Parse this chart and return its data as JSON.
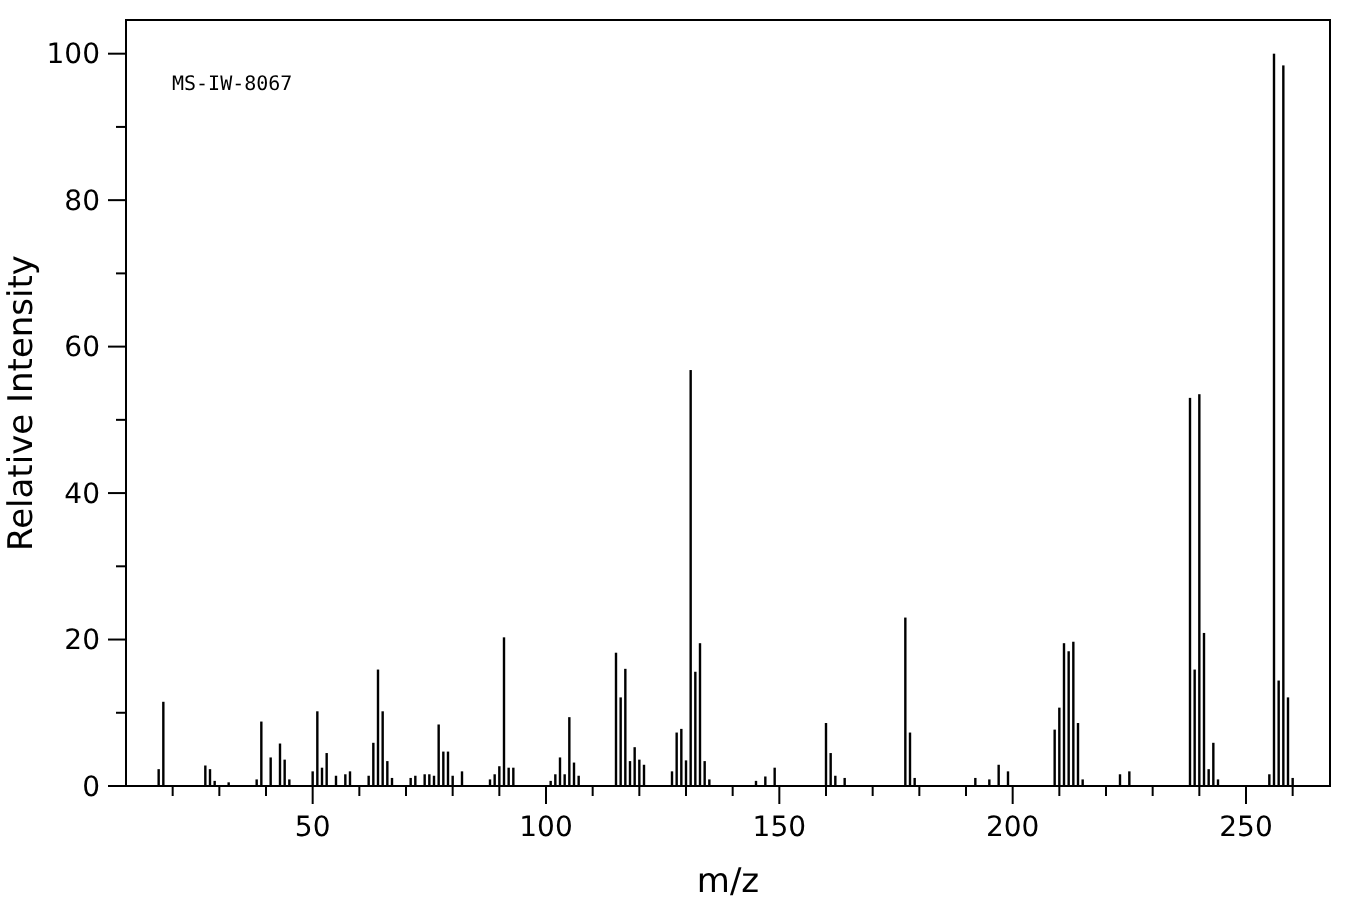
{
  "chart_data": {
    "type": "bar",
    "xlabel": "m/z",
    "ylabel": "Relative Intensity",
    "annotations": [
      "MS-IW-8067"
    ],
    "x": [
      17,
      18,
      27,
      28,
      29,
      32,
      38,
      39,
      41,
      43,
      44,
      45,
      50,
      51,
      52,
      53,
      55,
      57,
      58,
      62,
      63,
      64,
      65,
      66,
      67,
      71,
      72,
      74,
      75,
      76,
      77,
      78,
      79,
      80,
      82,
      88,
      89,
      90,
      91,
      92,
      93,
      101,
      102,
      103,
      104,
      105,
      106,
      107,
      115,
      116,
      117,
      118,
      119,
      120,
      121,
      127,
      128,
      129,
      130,
      131,
      132,
      133,
      134,
      135,
      145,
      147,
      149,
      160,
      161,
      162,
      164,
      177,
      178,
      179,
      192,
      195,
      197,
      199,
      209,
      210,
      211,
      212,
      213,
      214,
      215,
      223,
      225,
      238,
      239,
      240,
      241,
      242,
      243,
      244,
      255,
      256,
      257,
      258,
      259,
      260
    ],
    "values": [
      2.3,
      11.5,
      2.8,
      2.3,
      0.7,
      0.5,
      0.9,
      8.8,
      3.9,
      5.8,
      3.6,
      0.9,
      2.0,
      10.2,
      2.5,
      4.5,
      1.4,
      1.6,
      2.0,
      1.4,
      5.9,
      15.9,
      10.2,
      3.4,
      1.1,
      1.1,
      1.4,
      1.6,
      1.6,
      1.4,
      8.4,
      4.7,
      4.7,
      1.4,
      2.0,
      0.9,
      1.6,
      2.7,
      20.3,
      2.5,
      2.5,
      0.7,
      1.6,
      3.9,
      1.6,
      9.4,
      3.2,
      1.4,
      18.2,
      12.1,
      16.0,
      3.4,
      5.3,
      3.6,
      2.9,
      2.0,
      7.3,
      7.8,
      3.5,
      56.8,
      15.6,
      19.5,
      3.4,
      0.9,
      0.7,
      1.3,
      2.5,
      8.6,
      4.5,
      1.4,
      1.1,
      23.0,
      7.3,
      1.1,
      1.1,
      0.9,
      2.9,
      2.0,
      7.7,
      10.7,
      19.5,
      18.4,
      19.7,
      8.6,
      0.9,
      1.6,
      2.0,
      53.0,
      15.9,
      53.5,
      20.9,
      2.3,
      5.9,
      0.9,
      1.6,
      100,
      14.4,
      98.4,
      12.1,
      1.1
    ],
    "color": "#000000",
    "xlim": [
      10,
      268
    ],
    "xticks": [
      {
        "value": 20,
        "label": null
      },
      {
        "value": 30,
        "label": null
      },
      {
        "value": 40,
        "label": null
      },
      50,
      {
        "value": 60,
        "label": null
      },
      {
        "value": 70,
        "label": null
      },
      {
        "value": 80,
        "label": null
      },
      {
        "value": 90,
        "label": null
      },
      100,
      {
        "value": 110,
        "label": null
      },
      {
        "value": 120,
        "label": null
      },
      {
        "value": 130,
        "label": null
      },
      {
        "value": 140,
        "label": null
      },
      150,
      {
        "value": 160,
        "label": null
      },
      {
        "value": 170,
        "label": null
      },
      {
        "value": 180,
        "label": null
      },
      {
        "value": 190,
        "label": null
      },
      200,
      {
        "value": 210,
        "label": null
      },
      {
        "value": 220,
        "label": null
      },
      {
        "value": 230,
        "label": null
      },
      {
        "value": 240,
        "label": null
      },
      250,
      {
        "value": 260,
        "label": null
      }
    ],
    "ylim": [
      0,
      104.6
    ],
    "yticks": [
      0,
      {
        "value": 10,
        "label": null
      },
      20,
      {
        "value": 30,
        "label": null
      },
      40,
      {
        "value": 50,
        "label": null
      },
      60,
      {
        "value": 70,
        "label": null
      },
      80,
      {
        "value": 90,
        "label": null
      },
      100
    ],
    "grid": false
  }
}
